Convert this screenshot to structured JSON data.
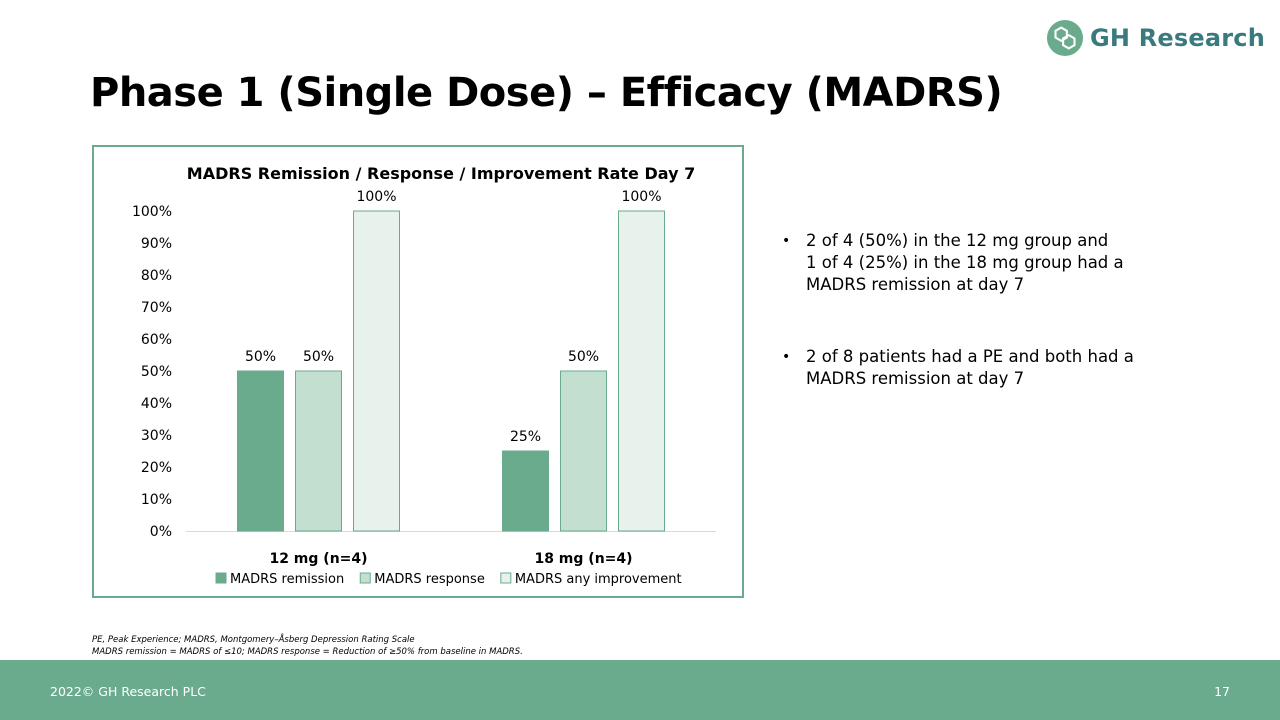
{
  "header": {
    "logo_text": "GH Research",
    "logo_icon": "hexagon-molecule-icon",
    "title": "Phase 1 (Single Dose) – Efficacy (MADRS)"
  },
  "colors": {
    "brand": "#6aab8e",
    "remission": "#6aab8e",
    "response": "#c3dfd0",
    "improvement": "#e8f2ec",
    "logo_text": "#3a7a7e"
  },
  "chart_data": {
    "type": "bar",
    "title": "MADRS Remission / Response / Improvement Rate Day 7",
    "categories": [
      "12 mg (n=4)",
      "18 mg (n=4)"
    ],
    "series": [
      {
        "name": "MADRS remission",
        "values": [
          50,
          25
        ],
        "labels": [
          "50%",
          "25%"
        ]
      },
      {
        "name": "MADRS response",
        "values": [
          50,
          50
        ],
        "labels": [
          "50%",
          "50%"
        ]
      },
      {
        "name": "MADRS any improvement",
        "values": [
          100,
          100
        ],
        "labels": [
          "100%",
          "100%"
        ]
      }
    ],
    "ylim": [
      0,
      100
    ],
    "yticks": [
      "0%",
      "10%",
      "20%",
      "30%",
      "40%",
      "50%",
      "60%",
      "70%",
      "80%",
      "90%",
      "100%"
    ],
    "xlabel": "",
    "ylabel": "",
    "grid": false,
    "legend": "bottom"
  },
  "bullets": [
    {
      "lines": [
        "2 of 4 (50%) in the 12 mg group and",
        "1 of 4 (25%) in the 18 mg group had a",
        "MADRS remission at day 7"
      ]
    },
    {
      "lines": [
        "2 of 8 patients had a PE and both had a",
        "MADRS remission at day 7"
      ]
    }
  ],
  "footnotes": [
    "PE, Peak Experience; MADRS, Montgomery–Åsberg Depression Rating Scale",
    "MADRS remission = MADRS of ≤10; MADRS response = Reduction of ≥50% from baseline in MADRS."
  ],
  "footer": {
    "copyright": "2022© GH Research PLC",
    "page_number": "17"
  }
}
